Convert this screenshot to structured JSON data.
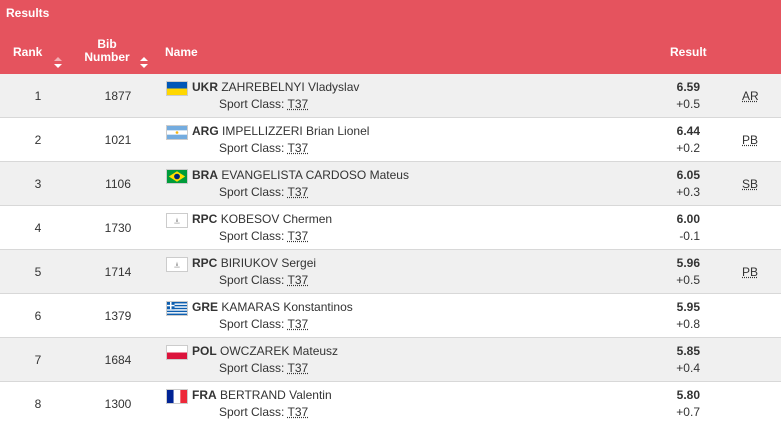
{
  "header": {
    "title": "Results",
    "columns": {
      "rank": "Rank",
      "bib": "Bib Number",
      "name": "Name",
      "result": "Result"
    }
  },
  "colors": {
    "header_bg": "#e5535e",
    "row_alt": "#f0f0f0"
  },
  "sport_class_label": "Sport Class:",
  "rows": [
    {
      "rank": "1",
      "bib": "1877",
      "noc": "UKR",
      "name": "ZAHREBELNYI Vladyslav",
      "sport_class": "T37",
      "mark": "6.59",
      "wind": "+0.5",
      "record": "AR",
      "flag": "ukr-flag-icon"
    },
    {
      "rank": "2",
      "bib": "1021",
      "noc": "ARG",
      "name": "IMPELLIZZERI Brian Lionel",
      "sport_class": "T37",
      "mark": "6.44",
      "wind": "+0.2",
      "record": "PB",
      "flag": "arg-flag-icon"
    },
    {
      "rank": "3",
      "bib": "1106",
      "noc": "BRA",
      "name": "EVANGELISTA CARDOSO Mateus",
      "sport_class": "T37",
      "mark": "6.05",
      "wind": "+0.3",
      "record": "SB",
      "flag": "bra-flag-icon"
    },
    {
      "rank": "4",
      "bib": "1730",
      "noc": "RPC",
      "name": "KOBESOV Chermen",
      "sport_class": "T37",
      "mark": "6.00",
      "wind": "-0.1",
      "record": "",
      "flag": "rpc-flag-icon"
    },
    {
      "rank": "5",
      "bib": "1714",
      "noc": "RPC",
      "name": "BIRIUKOV Sergei",
      "sport_class": "T37",
      "mark": "5.96",
      "wind": "+0.5",
      "record": "PB",
      "flag": "rpc-flag-icon"
    },
    {
      "rank": "6",
      "bib": "1379",
      "noc": "GRE",
      "name": "KAMARAS Konstantinos",
      "sport_class": "T37",
      "mark": "5.95",
      "wind": "+0.8",
      "record": "",
      "flag": "gre-flag-icon"
    },
    {
      "rank": "7",
      "bib": "1684",
      "noc": "POL",
      "name": "OWCZAREK Mateusz",
      "sport_class": "T37",
      "mark": "5.85",
      "wind": "+0.4",
      "record": "",
      "flag": "pol-flag-icon"
    },
    {
      "rank": "8",
      "bib": "1300",
      "noc": "FRA",
      "name": "BERTRAND Valentin",
      "sport_class": "T37",
      "mark": "5.80",
      "wind": "+0.7",
      "record": "",
      "flag": "fra-flag-icon"
    }
  ]
}
